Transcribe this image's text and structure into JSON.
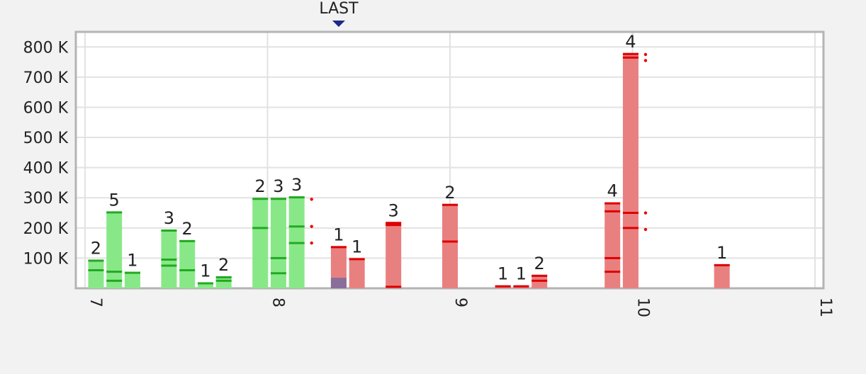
{
  "chart_data": {
    "type": "bar",
    "title": "",
    "xlabel": "",
    "ylabel": "",
    "xlim": [
      7,
      11
    ],
    "ylim": [
      0,
      850000
    ],
    "x_ticks": [
      "7",
      "8",
      "9",
      "10",
      "11"
    ],
    "y_ticks": [
      {
        "value": 100000,
        "label": "100 K"
      },
      {
        "value": 200000,
        "label": "200 K"
      },
      {
        "value": 300000,
        "label": "300 K"
      },
      {
        "value": 400000,
        "label": "400 K"
      },
      {
        "value": 500000,
        "label": "500 K"
      },
      {
        "value": 600000,
        "label": "600 K"
      },
      {
        "value": 700000,
        "label": "700 K"
      },
      {
        "value": 800000,
        "label": "800 K"
      }
    ],
    "grid": true,
    "marker": {
      "label": "LAST",
      "x": 8.39
    },
    "colors": {
      "green": "#88e888",
      "green_line": "#22aa22",
      "red": "#e98080",
      "red_line": "#dd0000",
      "purple": "#8a6e9a",
      "marker": "#1a2a8a"
    },
    "bars": [
      {
        "x": 7.06,
        "value": 95000,
        "count": "2",
        "color": "green",
        "lines": [
          60000
        ]
      },
      {
        "x": 7.16,
        "value": 255000,
        "count": "5",
        "color": "green",
        "lines": [
          55000,
          25000
        ]
      },
      {
        "x": 7.26,
        "value": 55000,
        "count": "1",
        "color": "green",
        "lines": []
      },
      {
        "x": 7.46,
        "value": 195000,
        "count": "3",
        "color": "green",
        "lines": [
          95000,
          75000
        ]
      },
      {
        "x": 7.56,
        "value": 160000,
        "count": "2",
        "color": "green",
        "lines": [
          60000
        ]
      },
      {
        "x": 7.66,
        "value": 20000,
        "count": "1",
        "color": "green",
        "lines": []
      },
      {
        "x": 7.76,
        "value": 40000,
        "count": "2",
        "color": "green",
        "lines": [
          25000
        ]
      },
      {
        "x": 7.96,
        "value": 300000,
        "count": "2",
        "color": "green",
        "lines": [
          200000
        ]
      },
      {
        "x": 8.06,
        "value": 300000,
        "count": "3",
        "color": "green",
        "lines": [
          100000,
          50000
        ]
      },
      {
        "x": 8.16,
        "value": 305000,
        "count": "3",
        "color": "green",
        "lines": [
          205000,
          150000
        ],
        "dots": [
          295000,
          205000,
          150000
        ]
      },
      {
        "x": 8.39,
        "value": 140000,
        "count": "1",
        "color": "red",
        "lines": [],
        "purple_value": 35000
      },
      {
        "x": 8.49,
        "value": 100000,
        "count": "1",
        "color": "red",
        "lines": []
      },
      {
        "x": 8.69,
        "value": 220000,
        "count": "3",
        "color": "red",
        "lines": [
          210000,
          5000
        ]
      },
      {
        "x": 9.0,
        "value": 280000,
        "count": "2",
        "color": "red",
        "lines": [
          155000
        ]
      },
      {
        "x": 9.29,
        "value": 10000,
        "count": "1",
        "color": "red",
        "lines": []
      },
      {
        "x": 9.39,
        "value": 10000,
        "count": "1",
        "color": "red",
        "lines": []
      },
      {
        "x": 9.49,
        "value": 45000,
        "count": "2",
        "color": "red",
        "lines": [
          25000
        ]
      },
      {
        "x": 9.89,
        "value": 285000,
        "count": "4",
        "color": "red",
        "lines": [
          255000,
          100000,
          55000
        ]
      },
      {
        "x": 9.99,
        "value": 780000,
        "count": "4",
        "color": "red",
        "lines": [
          765000,
          250000,
          200000
        ],
        "dots": [
          775000,
          755000,
          250000,
          195000
        ]
      },
      {
        "x": 10.49,
        "value": 80000,
        "count": "1",
        "color": "red",
        "lines": []
      }
    ]
  }
}
